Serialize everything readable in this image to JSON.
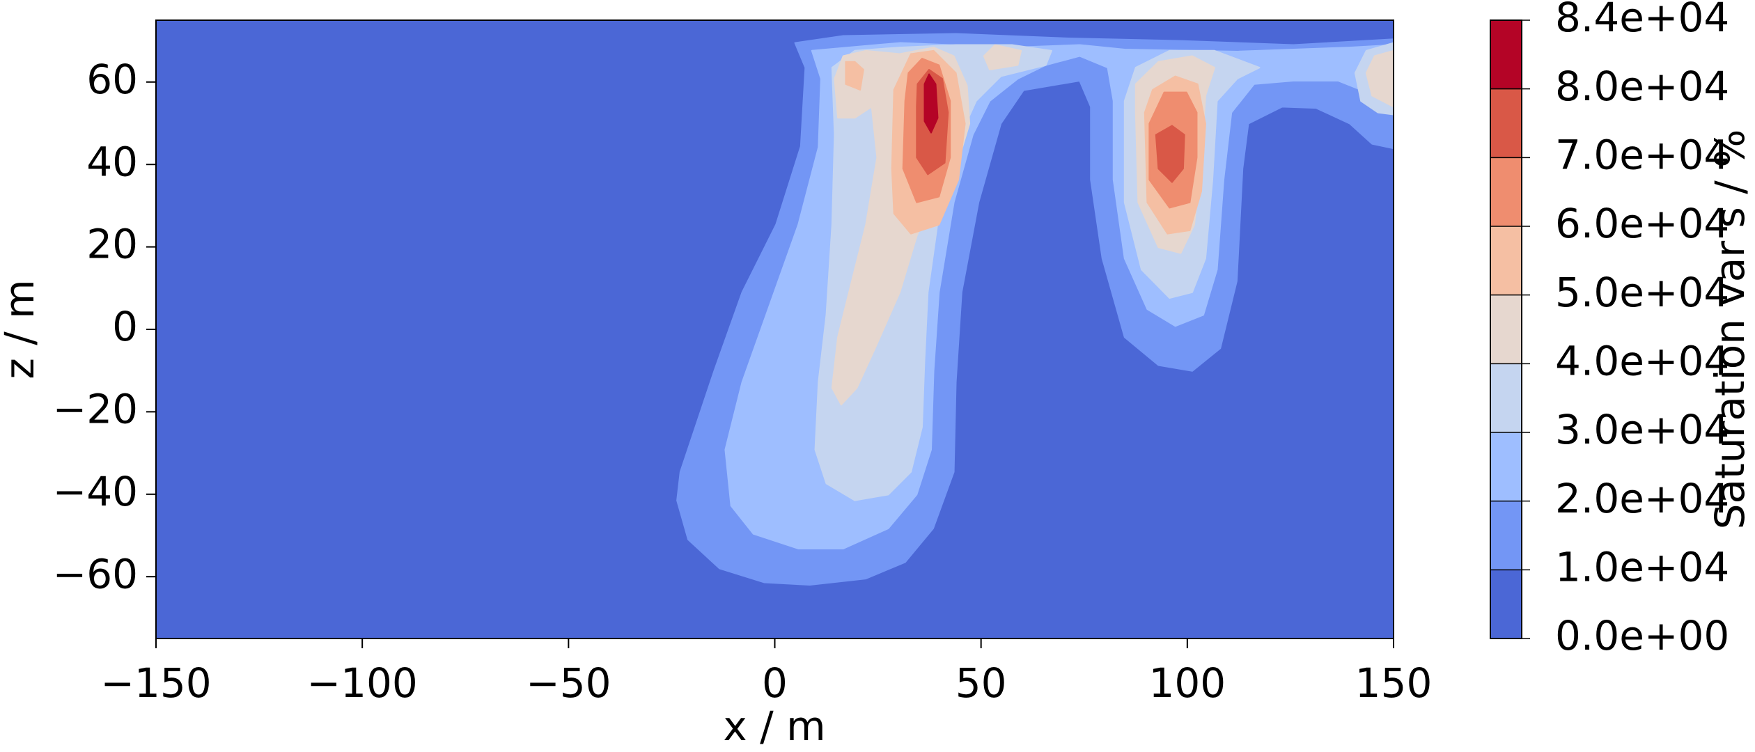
{
  "chart_data": {
    "type": "contour",
    "xlabel": "x / m",
    "ylabel": "z / m",
    "colorbar_label": "Saturation var s / %",
    "xlim": [
      -150,
      150
    ],
    "ylim": [
      -75,
      75
    ],
    "xticks": [
      {
        "value": -150,
        "label": "−150"
      },
      {
        "value": -100,
        "label": "−100"
      },
      {
        "value": -50,
        "label": "−50"
      },
      0,
      50,
      100,
      150
    ],
    "yticks": [
      {
        "value": -60,
        "label": "−60"
      },
      {
        "value": -40,
        "label": "−40"
      },
      {
        "value": -20,
        "label": "−20"
      },
      0,
      20,
      40,
      60
    ],
    "levels": [
      {
        "value": 0,
        "label": "0.0e+00"
      },
      {
        "value": 10000,
        "label": "1.0e+04"
      },
      {
        "value": 20000,
        "label": "2.0e+04"
      },
      {
        "value": 30000,
        "label": "3.0e+04"
      },
      {
        "value": 40000,
        "label": "4.0e+04"
      },
      {
        "value": 50000,
        "label": "5.0e+04"
      },
      {
        "value": 60000,
        "label": "6.0e+04"
      },
      {
        "value": 70000,
        "label": "7.0e+04"
      },
      {
        "value": 80000,
        "label": "8.0e+04"
      },
      {
        "value": 84000,
        "label": "8.4e+04"
      }
    ],
    "colors": [
      "#4b67d6",
      "#7396f5",
      "#9ebeff",
      "#c5d5f0",
      "#e6d7cf",
      "#f5bfa3",
      "#ef8d6f",
      "#d95847",
      "#b40426"
    ],
    "regions": [
      {
        "level": 0,
        "x": [
          -150,
          150,
          150,
          -150
        ],
        "z": [
          -75,
          -75,
          75,
          75
        ]
      },
      {
        "level": 10000,
        "x": [
          4.9,
          7.4,
          6.3,
          0.3,
          -7.9,
          -14.7,
          -22.9,
          -23.7,
          -21,
          -13.4,
          -2.5,
          8.5,
          22,
          31.6,
          38.4,
          43.4,
          43.9,
          45.3,
          49.4,
          54.8,
          60.3,
          73.9,
          76.6,
          76.6,
          79.4,
          84.8,
          93,
          101.2,
          108,
          112,
          113.4,
          114.8,
          123,
          131.2,
          139.4,
          144.8,
          150,
          150,
          125.7,
          98.4,
          71.2,
          43.9,
          16.6
        ],
        "z": [
          69.5,
          63.5,
          44.4,
          25.4,
          9,
          -10.1,
          -34.6,
          -41.5,
          -51,
          -58,
          -61.4,
          -62,
          -60.5,
          -56.5,
          -48.3,
          -34.6,
          -12.8,
          9,
          30.8,
          49.9,
          58,
          60.3,
          54,
          36.3,
          17.2,
          -1.9,
          -8.7,
          -10.1,
          -4.6,
          11.7,
          39,
          49.9,
          54,
          53.7,
          49.9,
          45,
          43.9,
          70.4,
          69,
          70,
          70.6,
          71.7,
          71.2
        ]
      },
      {
        "level": 20000,
        "x": [
          9,
          11.2,
          10.6,
          5.7,
          -1.1,
          -7.9,
          -12,
          -10.6,
          -5.2,
          5.7,
          16.6,
          27.5,
          34.4,
          37.9,
          38.5,
          39.8,
          43.4,
          48,
          52.1,
          58.9,
          65.7,
          73.9,
          80.7,
          82.1,
          82.1,
          84.8,
          90.3,
          97.1,
          103.9,
          107.2,
          108.8,
          110.7,
          116.2,
          125.7,
          136.6,
          142.1,
          147.5,
          150,
          150,
          139.4,
          112.1,
          84.8,
          73.9,
          57.5,
          30.3
        ],
        "z": [
          67.6,
          60.8,
          44.2,
          25.4,
          6.3,
          -12.8,
          -29.2,
          -42.8,
          -49.6,
          -53.2,
          -53.2,
          -48.3,
          -40.1,
          -29.2,
          -10.1,
          9,
          30.8,
          47.2,
          55.4,
          60.8,
          64.1,
          66.3,
          63.5,
          55.4,
          36.3,
          17.2,
          4.9,
          0.8,
          3.5,
          14.5,
          36.3,
          52.6,
          59.5,
          60.3,
          60.3,
          58.1,
          54,
          54,
          69,
          68.4,
          67.4,
          67.9,
          69,
          68.4,
          69.5
        ]
      },
      {
        "level": 30000,
        "x": [
          13.9,
          14.5,
          13.9,
          12.5,
          10.6,
          9.8,
          12.5,
          19.4,
          27.5,
          33,
          35.7,
          36.3,
          37.1,
          39.8,
          43.9,
          48.8,
          54.8,
          65.7,
          67.1,
          57.5,
          43.9,
          30.3,
          19.4
        ],
        "z": [
          63.5,
          47.2,
          25.4,
          3.5,
          -12.8,
          -29.2,
          -37.4,
          -41.5,
          -40.1,
          -34.6,
          -23.7,
          -7.4,
          9,
          28.1,
          44.5,
          55.4,
          61.4,
          64.1,
          67.6,
          69,
          69,
          68.4,
          67.6
        ]
      },
      {
        "level": 30000,
        "x": [
          84.8,
          84.8,
          88.9,
          95.7,
          101.2,
          104.4,
          106.1,
          107.2,
          112.1,
          117.5,
          106.6,
          95.7,
          87.5
        ],
        "z": [
          55.4,
          30.8,
          14.5,
          7.6,
          9,
          17.2,
          36.3,
          55.4,
          60.8,
          63.5,
          67.6,
          67.6,
          63.5
        ]
      },
      {
        "level": 30000,
        "x": [
          140.7,
          142.1,
          146.2,
          150,
          150,
          143.4
        ],
        "z": [
          62.2,
          55.4,
          52.6,
          52.1,
          69.5,
          67.6
        ]
      },
      {
        "level": 40000,
        "x": [
          14.5,
          15.3,
          19.4,
          23.5,
          24.8,
          22.1,
          18,
          15.3,
          13.9,
          16.1,
          19.9,
          24.3,
          30.3,
          34.4,
          37.9,
          43.9,
          47.2,
          46.6,
          43.4,
          38.5,
          30.3,
          22.1,
          16.6
        ],
        "z": [
          60.8,
          51.3,
          51.3,
          54,
          41.7,
          25.4,
          9,
          -1.9,
          -14.2,
          -18.3,
          -14.2,
          -4.6,
          9,
          22.6,
          30.8,
          39,
          49.9,
          59.1,
          66.3,
          68.4,
          66.8,
          67.6,
          66.3
        ]
      },
      {
        "level": 40000,
        "x": [
          50.7,
          52.1,
          58.9,
          59.7,
          53.4
        ],
        "z": [
          66.3,
          63,
          64.1,
          67.6,
          69
        ]
      },
      {
        "level": 40000,
        "x": [
          87.5,
          88.1,
          93,
          98.4,
          101.7,
          103.4,
          104.4,
          106.6,
          101.2,
          93,
          87.5
        ],
        "z": [
          52.6,
          30.8,
          19.9,
          18.5,
          25.4,
          41.7,
          56.7,
          63.5,
          66.3,
          64.9,
          59.5
        ]
      },
      {
        "level": 40000,
        "x": [
          143.4,
          144.8,
          150,
          150,
          145.4
        ],
        "z": [
          62.2,
          56.7,
          54,
          67.6,
          66.3
        ]
      },
      {
        "level": 50000,
        "x": [
          28.9,
          28.4,
          28.9,
          33,
          39.8,
          44.5,
          46.1,
          43.9,
          38.5,
          33
        ],
        "z": [
          58.1,
          39,
          28.1,
          23.2,
          25.4,
          36.3,
          49.9,
          62.2,
          67.6,
          66.8
        ]
      },
      {
        "level": 50000,
        "x": [
          17.2,
          17.2,
          20.7,
          21.5,
          19.4
        ],
        "z": [
          64.9,
          59.5,
          58.1,
          63,
          64.9
        ]
      },
      {
        "level": 50000,
        "x": [
          89.7,
          90.3,
          95.2,
          100.6,
          103.4,
          104.4,
          102.5,
          97.1,
          91.6
        ],
        "z": [
          52.6,
          30.8,
          23.2,
          24,
          33.5,
          49.9,
          59.5,
          61.4,
          58.1
        ]
      },
      {
        "level": 60000,
        "x": [
          31.6,
          31.1,
          34.4,
          39.8,
          42.5,
          42.5,
          39.8,
          35.7,
          32.4
        ],
        "z": [
          55.4,
          39,
          30.8,
          32.2,
          41.7,
          55.4,
          64.1,
          65.7,
          62.2
        ]
      },
      {
        "level": 60000,
        "x": [
          90.8,
          90.8,
          95.7,
          100.6,
          102.3,
          102.3,
          99.8,
          94.4
        ],
        "z": [
          49.9,
          36.3,
          29.5,
          30.8,
          41.7,
          52.6,
          57.5,
          57.5
        ]
      },
      {
        "level": 70000,
        "x": [
          34.4,
          34.4,
          37.1,
          41.2,
          42,
          40.6,
          37.4,
          34.6
        ],
        "z": [
          54,
          41.7,
          37.6,
          40.4,
          52.6,
          60.8,
          63,
          59.5
        ]
      },
      {
        "level": 70000,
        "x": [
          92.4,
          93,
          96.3,
          99,
          99.3,
          96.3
        ],
        "z": [
          47.2,
          39,
          35.7,
          39,
          47.2,
          49.4
        ]
      },
      {
        "level": 80000,
        "x": [
          36.3,
          36.3,
          37.9,
          39.5,
          39,
          37.4
        ],
        "z": [
          59.5,
          50.5,
          47.7,
          51.3,
          59.5,
          61.9
        ]
      }
    ]
  }
}
